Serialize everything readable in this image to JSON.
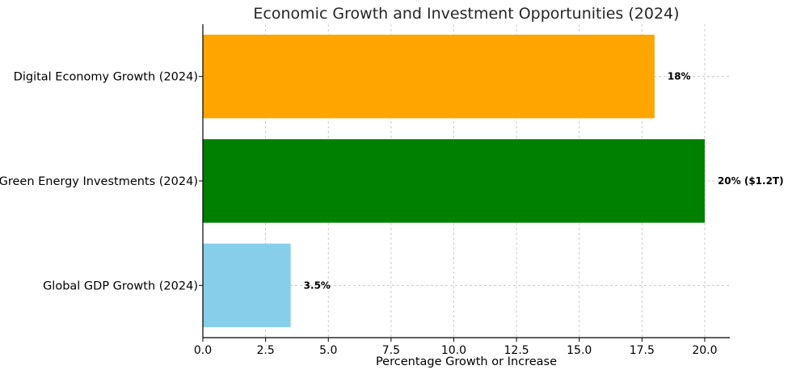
{
  "chart_data": {
    "type": "bar",
    "orientation": "horizontal",
    "title": "Economic Growth and Investment Opportunities (2024)",
    "xlabel": "Percentage Growth or Increase",
    "ylabel": "",
    "xlim": [
      0,
      21
    ],
    "xticks": [
      "0.0",
      "2.5",
      "5.0",
      "7.5",
      "10.0",
      "12.5",
      "15.0",
      "17.5",
      "20.0"
    ],
    "categories": [
      "Digital Economy Growth (2024)",
      "Green Energy Investments (2024)",
      "Global GDP Growth (2024)"
    ],
    "values": [
      18,
      20,
      3.5
    ],
    "data_labels": [
      "18%",
      "20% ($1.2T)",
      "3.5%"
    ],
    "colors": [
      "#FFA500",
      "#008000",
      "#87CEEB"
    ],
    "grid": true
  }
}
